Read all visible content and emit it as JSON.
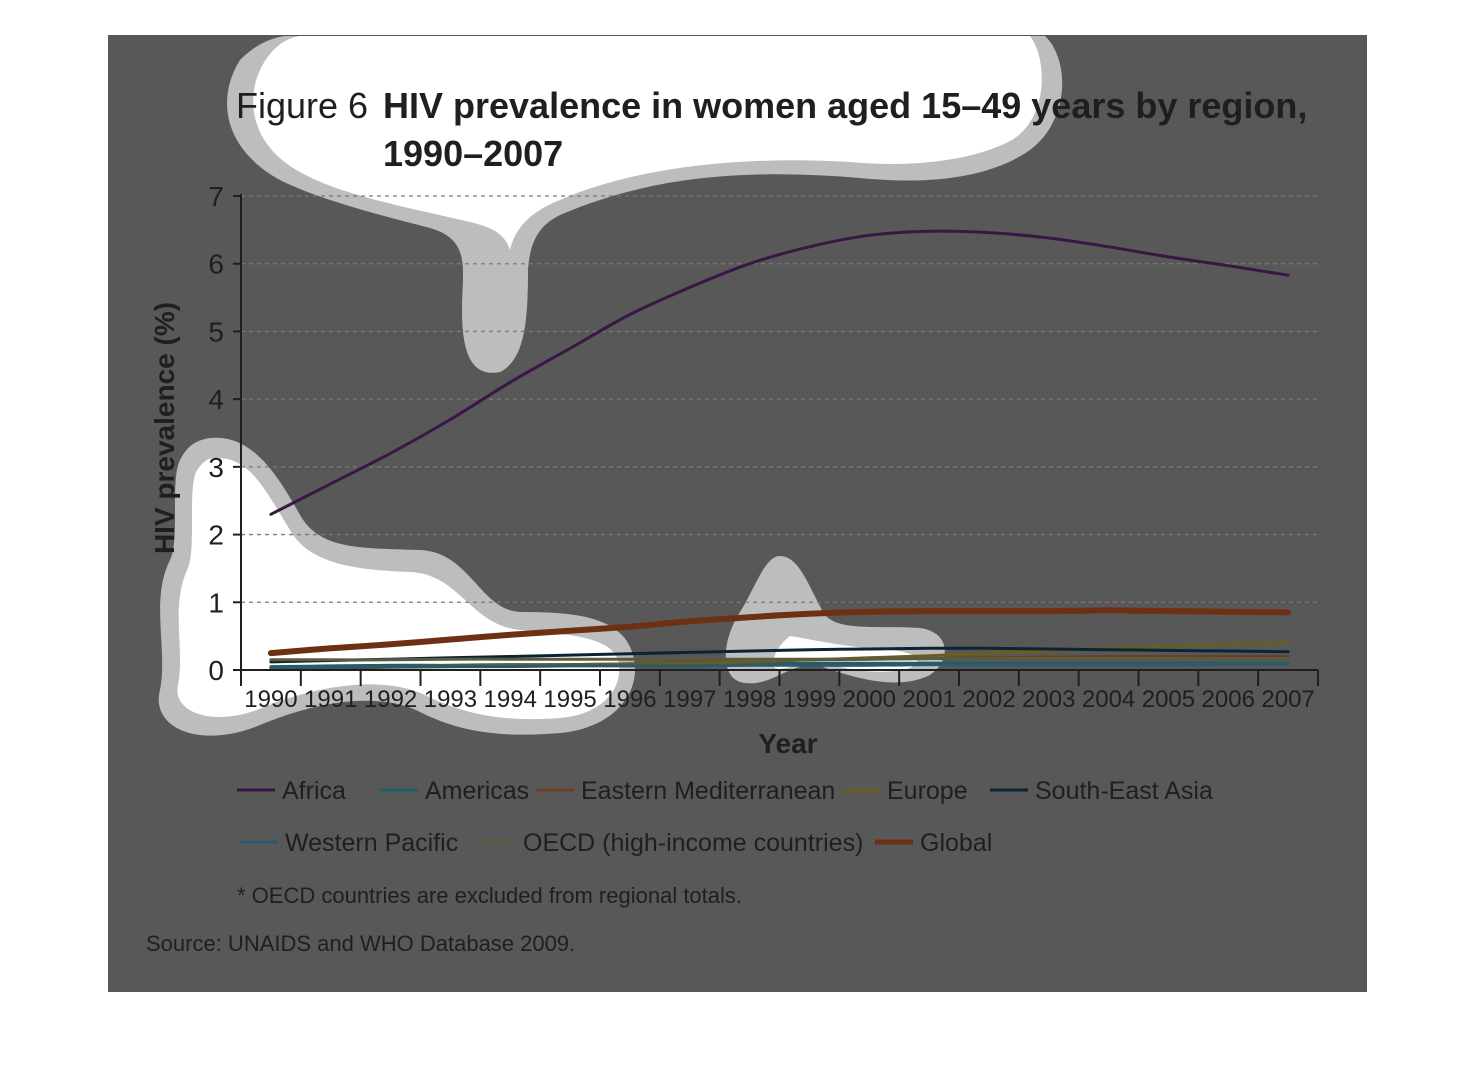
{
  "title": {
    "figure_label": "Figure 6",
    "line1": "HIV prevalence in women aged 15–49 years by region,",
    "line2": "1990–2007"
  },
  "footnote": "* OECD countries are excluded from regional totals.",
  "source": "Source: UNAIDS and WHO Database 2009.",
  "colors": {
    "panel_background": "#585858",
    "gridline": "#7a7a7a",
    "axis": "#1f1f1f",
    "text": "#1f1f1f",
    "blob_fill": "#ffffff",
    "blob_halo": "#b9b9b9"
  },
  "chart_data": {
    "type": "line",
    "xlabel": "Year",
    "ylabel": "HIV prevalence (%)",
    "x": [
      "1990",
      "1991",
      "1992",
      "1993",
      "1994",
      "1995",
      "1996",
      "1997",
      "1998",
      "1999",
      "2000",
      "2001",
      "2002",
      "2003",
      "2004",
      "2005",
      "2006",
      "2007"
    ],
    "ylim": [
      0,
      7
    ],
    "yticks": [
      "0",
      "1",
      "2",
      "3",
      "4",
      "5",
      "6",
      "7"
    ],
    "grid": "horizontal dashed",
    "legend_position": "bottom",
    "series": [
      {
        "name": "Africa",
        "color": "#3a1645",
        "width": 3,
        "values": [
          2.3,
          2.75,
          3.2,
          3.7,
          4.25,
          4.75,
          5.25,
          5.65,
          6.0,
          6.25,
          6.42,
          6.48,
          6.46,
          6.38,
          6.25,
          6.1,
          5.97,
          5.83
        ]
      },
      {
        "name": "Americas",
        "color": "#1f5f66",
        "width": 3,
        "values": [
          0.05,
          0.06,
          0.07,
          0.07,
          0.08,
          0.08,
          0.09,
          0.09,
          0.09,
          0.1,
          0.1,
          0.1,
          0.1,
          0.1,
          0.1,
          0.1,
          0.1,
          0.1
        ]
      },
      {
        "name": "Eastern Mediterranean",
        "color": "#6b3f27",
        "width": 3,
        "values": [
          0.02,
          0.03,
          0.04,
          0.05,
          0.06,
          0.07,
          0.09,
          0.11,
          0.13,
          0.15,
          0.16,
          0.17,
          0.18,
          0.19,
          0.2,
          0.2,
          0.2,
          0.2
        ]
      },
      {
        "name": "Europe",
        "color": "#6b5d1f",
        "width": 3,
        "values": [
          0.03,
          0.04,
          0.05,
          0.06,
          0.07,
          0.08,
          0.09,
          0.1,
          0.12,
          0.15,
          0.18,
          0.21,
          0.25,
          0.28,
          0.32,
          0.35,
          0.38,
          0.4
        ]
      },
      {
        "name": "South-East Asia",
        "color": "#0b2433",
        "width": 3,
        "values": [
          0.12,
          0.14,
          0.16,
          0.18,
          0.2,
          0.22,
          0.24,
          0.26,
          0.28,
          0.3,
          0.31,
          0.32,
          0.32,
          0.31,
          0.3,
          0.29,
          0.28,
          0.27
        ]
      },
      {
        "name": "Western Pacific",
        "color": "#2a5a6c",
        "width": 3,
        "values": [
          0.04,
          0.04,
          0.05,
          0.05,
          0.05,
          0.06,
          0.06,
          0.06,
          0.07,
          0.07,
          0.07,
          0.08,
          0.08,
          0.08,
          0.08,
          0.08,
          0.09,
          0.09
        ]
      },
      {
        "name": "OECD (high-income countries)",
        "color": "#5a5a40",
        "width": 3,
        "values": [
          0.15,
          0.15,
          0.15,
          0.16,
          0.16,
          0.16,
          0.16,
          0.16,
          0.16,
          0.16,
          0.16,
          0.17,
          0.17,
          0.17,
          0.17,
          0.17,
          0.17,
          0.17
        ]
      },
      {
        "name": "Global",
        "color": "#6e2f15",
        "width": 6,
        "values": [
          0.25,
          0.32,
          0.38,
          0.45,
          0.52,
          0.58,
          0.64,
          0.72,
          0.78,
          0.83,
          0.86,
          0.87,
          0.87,
          0.87,
          0.88,
          0.87,
          0.86,
          0.85
        ]
      }
    ]
  }
}
